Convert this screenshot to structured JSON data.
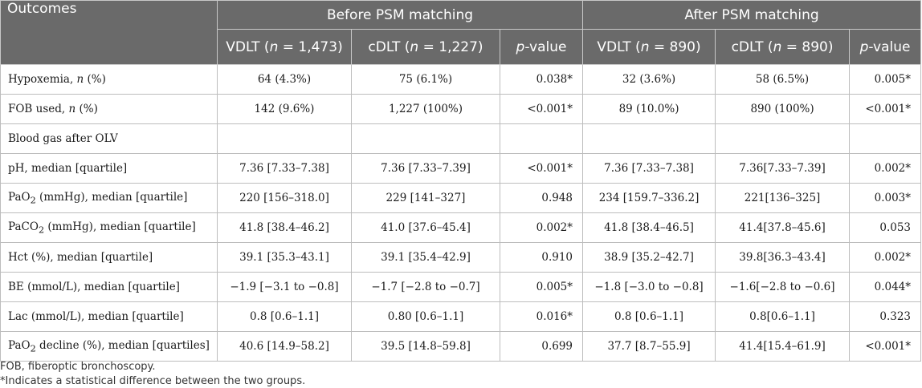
{
  "table": {
    "corner_header": "Outcomes",
    "groups": [
      "Before PSM matching",
      "After PSM matching"
    ],
    "columns": [
      {
        "pre": "VDLT (",
        "it": "n",
        "post": " = 1,473)"
      },
      {
        "pre": "cDLT (",
        "it": "n",
        "post": " = 1,227)"
      },
      {
        "pre": "",
        "it": "p",
        "post": "-value"
      },
      {
        "pre": "VDLT (",
        "it": "n",
        "post": " = 890)"
      },
      {
        "pre": "cDLT (",
        "it": "n",
        "post": " = 890)"
      },
      {
        "pre": "",
        "it": "p",
        "post": "-value"
      }
    ],
    "rows": [
      {
        "label": {
          "pre": "Hypoxemia, ",
          "it": "n",
          "post": " (%)"
        },
        "values": [
          "64 (4.3%)",
          "75 (6.1%)",
          "0.038*",
          "32 (3.6%)",
          "58 (6.5%)",
          "0.005*"
        ]
      },
      {
        "label": {
          "pre": "FOB used, ",
          "it": "n",
          "post": " (%)"
        },
        "values": [
          "142 (9.6%)",
          "1,227 (100%)",
          "<0.001*",
          "89 (10.0%)",
          "890 (100%)",
          "<0.001*"
        ]
      },
      {
        "label": {
          "pre": "Blood gas after OLV"
        },
        "values": [
          "",
          "",
          "",
          "",
          "",
          ""
        ]
      },
      {
        "label": {
          "pre": "pH, median [quartile]"
        },
        "values": [
          "7.36 [7.33–7.38]",
          "7.36 [7.33–7.39]",
          "<0.001*",
          "7.36 [7.33–7.38]",
          "7.36[7.33–7.39]",
          "0.002*"
        ]
      },
      {
        "label": {
          "pre": "PaO",
          "sub": "2",
          "post": " (mmHg), median [quartile]"
        },
        "values": [
          "220 [156–318.0]",
          "229 [141–327]",
          "0.948",
          "234 [159.7–336.2]",
          "221[136–325]",
          "0.003*"
        ]
      },
      {
        "label": {
          "pre": "PaCO",
          "sub": "2",
          "post": " (mmHg), median [quartile]"
        },
        "values": [
          "41.8 [38.4–46.2]",
          "41.0 [37.6–45.4]",
          "0.002*",
          "41.8 [38.4–46.5]",
          "41.4[37.8–45.6]",
          "0.053"
        ]
      },
      {
        "label": {
          "pre": "Hct (%), median [quartile]"
        },
        "values": [
          "39.1 [35.3–43.1]",
          "39.1 [35.4–42.9]",
          "0.910",
          "38.9 [35.2–42.7]",
          "39.8[36.3–43.4]",
          "0.002*"
        ]
      },
      {
        "label": {
          "pre": "BE (mmol/L), median [quartile]"
        },
        "values": [
          "−1.9 [−3.1 to −0.8]",
          "−1.7 [−2.8 to −0.7]",
          "0.005*",
          "−1.8 [−3.0 to −0.8]",
          "−1.6[−2.8 to −0.6]",
          "0.044*"
        ]
      },
      {
        "label": {
          "pre": "Lac (mmol/L), median [quartile]"
        },
        "values": [
          "0.8 [0.6–1.1]",
          "0.80 [0.6–1.1]",
          "0.016*",
          "0.8 [0.6–1.1]",
          "0.8[0.6–1.1]",
          "0.323"
        ]
      },
      {
        "label": {
          "pre": "PaO",
          "sub": "2",
          "post": " decline (%), median [quartiles]"
        },
        "values": [
          "40.6 [14.9–58.2]",
          "39.5 [14.8–59.8]",
          "0.699",
          "37.7 [8.7–55.9]",
          "41.4[15.4–61.9]",
          "<0.001*"
        ]
      }
    ]
  },
  "footnotes": [
    "FOB, fiberoptic bronchoscopy.",
    "*Indicates a statistical difference between the two groups."
  ],
  "colors": {
    "header_bg": "#6a6a6a",
    "header_text": "#ffffff",
    "grid_line": "#bdbdbd"
  }
}
